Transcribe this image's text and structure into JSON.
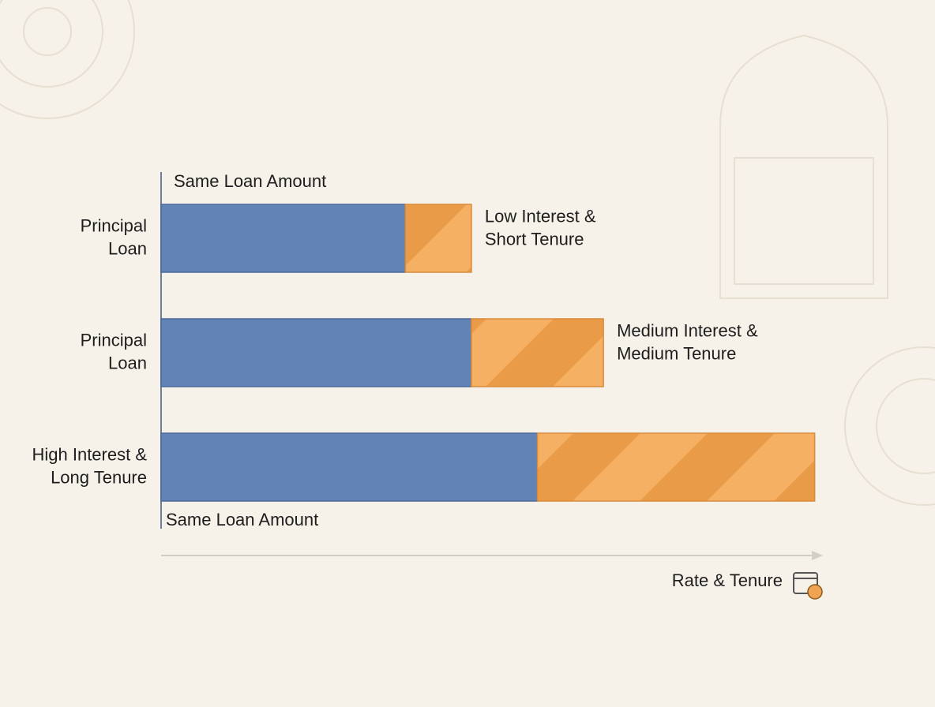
{
  "chart_data": {
    "type": "bar",
    "orientation": "horizontal",
    "stacked": true,
    "top_label": "Same Loan Amount",
    "bottom_label": "Same Loan Amount",
    "xlabel": "Rate & Tenure",
    "categories": [
      [
        "Principal",
        "Loan"
      ],
      [
        "Principal",
        "Loan"
      ],
      [
        "High Interest &",
        "Long Tenure"
      ]
    ],
    "annotations": [
      [
        "Low Interest &",
        "Short Tenure"
      ],
      [
        "Medium Interest &",
        "Medium Tenure"
      ]
    ],
    "series": [
      {
        "color": "#6283b6",
        "values": [
          37,
          47,
          57
        ]
      },
      {
        "color": "#f0a452",
        "values": [
          10,
          20,
          42
        ]
      }
    ],
    "xlim": [
      0,
      100
    ]
  }
}
